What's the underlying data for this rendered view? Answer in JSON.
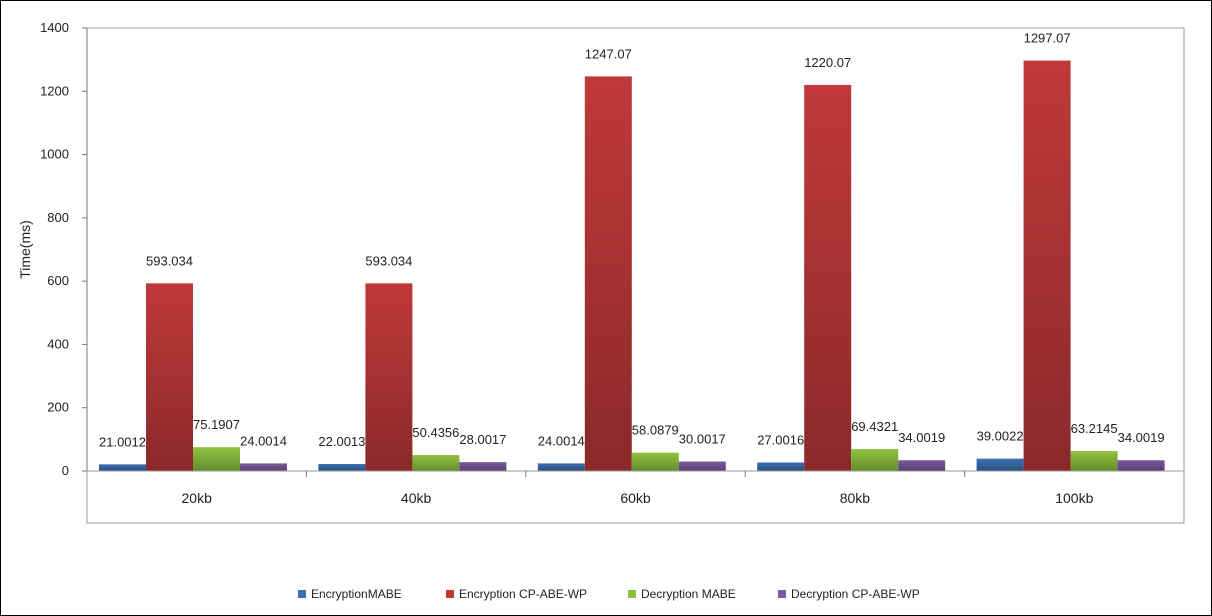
{
  "chart_data": {
    "type": "bar",
    "title": "",
    "xlabel": "",
    "ylabel": "Time(ms)",
    "ylim": [
      0,
      1400
    ],
    "yticks": [
      0,
      200,
      400,
      600,
      800,
      1000,
      1200,
      1400
    ],
    "grid": false,
    "legend_position": "bottom",
    "categories": [
      "20kb",
      "40kb",
      "60kb",
      "80kb",
      "100kb"
    ],
    "series": [
      {
        "name": "EncryptionMABE",
        "color": "#3a6fb0",
        "values": [
          21.0012,
          22.0013,
          24.0014,
          27.0016,
          39.0022
        ],
        "labels": [
          "21.0012",
          "22.0013",
          "24.0014",
          "27.0016",
          "39.0022"
        ]
      },
      {
        "name": "Encryption CP-ABE-WP",
        "color": "#c0393a",
        "values": [
          593.034,
          593.034,
          1247.07,
          1220.07,
          1297.07
        ],
        "labels": [
          "593.034",
          "593.034",
          "1247.07",
          "1220.07",
          "1297.07"
        ]
      },
      {
        "name": "Decryption MABE",
        "color": "#8fc240",
        "values": [
          75.1907,
          50.4356,
          58.0879,
          69.4321,
          63.2145
        ],
        "labels": [
          "75.1907",
          "50.4356",
          "58.0879",
          "69.4321",
          "63.2145"
        ]
      },
      {
        "name": "Decryption CP-ABE-WP",
        "color": "#7a5a9c",
        "values": [
          24.0014,
          28.0017,
          30.0017,
          34.0019,
          34.0019
        ],
        "labels": [
          "24.0014",
          "28.0017",
          "30.0017",
          "34.0019",
          "34.0019"
        ]
      }
    ]
  }
}
